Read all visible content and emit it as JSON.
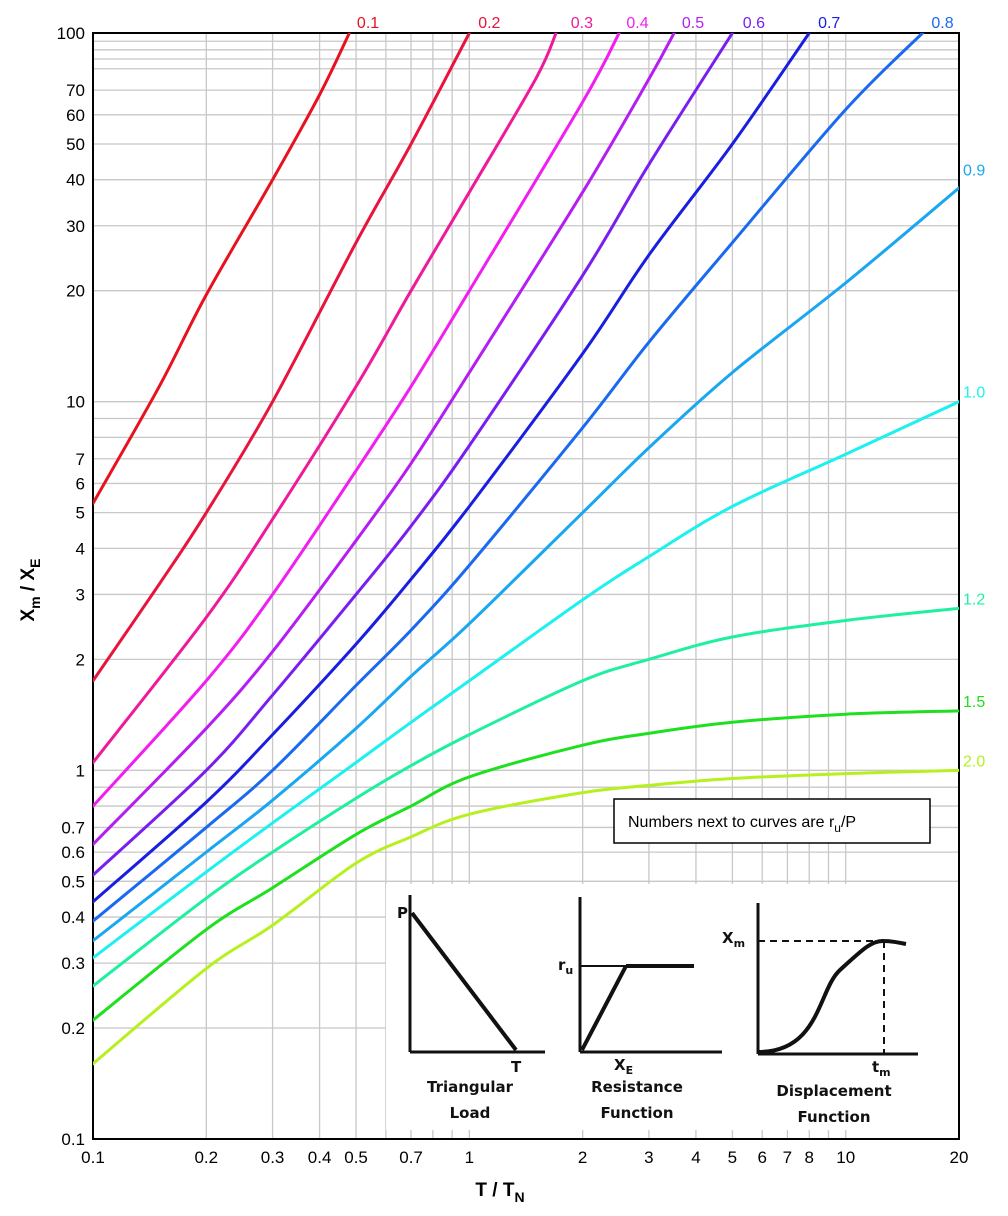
{
  "chart_data": {
    "type": "line",
    "title": "",
    "xlabel_main": "T / T",
    "xlabel_sub": "N",
    "ylabel_main": "X",
    "ylabel_sub1": "m",
    "ylabel_mid": " / X",
    "ylabel_sub2": "E",
    "x_scale": "log",
    "y_scale": "log",
    "xlim": [
      0.1,
      20
    ],
    "ylim": [
      0.1,
      100
    ],
    "grid": true,
    "x_ticks": [
      {
        "value": 0.1,
        "label": "0.1"
      },
      {
        "value": 0.2,
        "label": "0.2"
      },
      {
        "value": 0.3,
        "label": "0.3"
      },
      {
        "value": 0.4,
        "label": "0.4"
      },
      {
        "value": 0.5,
        "label": "0.5"
      },
      {
        "value": 0.7,
        "label": "0.7"
      },
      {
        "value": 1,
        "label": "1"
      },
      {
        "value": 2,
        "label": "2"
      },
      {
        "value": 3,
        "label": "3"
      },
      {
        "value": 4,
        "label": "4"
      },
      {
        "value": 5,
        "label": "5"
      },
      {
        "value": 6,
        "label": "6"
      },
      {
        "value": 7,
        "label": "7"
      },
      {
        "value": 8,
        "label": "8"
      },
      {
        "value": 10,
        "label": "10"
      },
      {
        "value": 20,
        "label": "20"
      }
    ],
    "y_ticks": [
      {
        "value": 0.1,
        "label": "0.1"
      },
      {
        "value": 0.2,
        "label": "0.2"
      },
      {
        "value": 0.3,
        "label": "0.3"
      },
      {
        "value": 0.4,
        "label": "0.4"
      },
      {
        "value": 0.5,
        "label": "0.5"
      },
      {
        "value": 0.6,
        "label": "0.6"
      },
      {
        "value": 0.7,
        "label": "0.7"
      },
      {
        "value": 1,
        "label": "1"
      },
      {
        "value": 2,
        "label": "2"
      },
      {
        "value": 3,
        "label": "3"
      },
      {
        "value": 4,
        "label": "4"
      },
      {
        "value": 5,
        "label": "5"
      },
      {
        "value": 6,
        "label": "6"
      },
      {
        "value": 7,
        "label": "7"
      },
      {
        "value": 10,
        "label": "10"
      },
      {
        "value": 20,
        "label": "20"
      },
      {
        "value": 30,
        "label": "30"
      },
      {
        "value": 40,
        "label": "40"
      },
      {
        "value": 50,
        "label": "50"
      },
      {
        "value": 60,
        "label": "60"
      },
      {
        "value": 70,
        "label": "70"
      },
      {
        "value": 100,
        "label": "100"
      }
    ],
    "series": [
      {
        "name": "0.1",
        "color": "#e8121e",
        "points": [
          [
            0.1,
            5.3
          ],
          [
            0.15,
            11
          ],
          [
            0.2,
            19.5
          ],
          [
            0.3,
            40
          ],
          [
            0.4,
            68
          ],
          [
            0.48,
            100
          ]
        ]
      },
      {
        "name": "0.2",
        "color": "#e8143c",
        "points": [
          [
            0.1,
            1.75
          ],
          [
            0.15,
            3.2
          ],
          [
            0.2,
            5
          ],
          [
            0.3,
            10
          ],
          [
            0.5,
            27
          ],
          [
            0.7,
            50
          ],
          [
            1.0,
            100
          ]
        ]
      },
      {
        "name": "0.3",
        "color": "#ee1a9a",
        "points": [
          [
            0.1,
            1.05
          ],
          [
            0.2,
            2.6
          ],
          [
            0.3,
            4.8
          ],
          [
            0.5,
            11
          ],
          [
            0.7,
            20
          ],
          [
            1.0,
            37
          ],
          [
            1.5,
            75
          ],
          [
            1.7,
            100
          ]
        ]
      },
      {
        "name": "0.4",
        "color": "#f21ef0",
        "points": [
          [
            0.1,
            0.8
          ],
          [
            0.2,
            1.75
          ],
          [
            0.3,
            3.0
          ],
          [
            0.5,
            6.5
          ],
          [
            0.7,
            11
          ],
          [
            1.0,
            20
          ],
          [
            2.0,
            65
          ],
          [
            2.5,
            100
          ]
        ]
      },
      {
        "name": "0.5",
        "color": "#b51ef2",
        "points": [
          [
            0.1,
            0.63
          ],
          [
            0.2,
            1.3
          ],
          [
            0.3,
            2.1
          ],
          [
            0.5,
            4.2
          ],
          [
            0.7,
            6.8
          ],
          [
            1.0,
            12
          ],
          [
            2.0,
            37
          ],
          [
            3.0,
            75
          ],
          [
            3.5,
            100
          ]
        ]
      },
      {
        "name": "0.6",
        "color": "#7a1ef0",
        "points": [
          [
            0.1,
            0.52
          ],
          [
            0.2,
            1.0
          ],
          [
            0.3,
            1.6
          ],
          [
            0.5,
            3.0
          ],
          [
            0.7,
            4.6
          ],
          [
            1.0,
            7.6
          ],
          [
            2.0,
            22
          ],
          [
            3.0,
            44
          ],
          [
            5.0,
            100
          ]
        ]
      },
      {
        "name": "0.7",
        "color": "#1a1ee0",
        "points": [
          [
            0.1,
            0.44
          ],
          [
            0.2,
            0.82
          ],
          [
            0.3,
            1.25
          ],
          [
            0.5,
            2.2
          ],
          [
            0.7,
            3.3
          ],
          [
            1.0,
            5.2
          ],
          [
            2.0,
            13.5
          ],
          [
            3.0,
            25
          ],
          [
            5.0,
            50
          ],
          [
            8.0,
            100
          ]
        ]
      },
      {
        "name": "0.8",
        "color": "#1a6af0",
        "points": [
          [
            0.1,
            0.39
          ],
          [
            0.2,
            0.7
          ],
          [
            0.3,
            1.0
          ],
          [
            0.5,
            1.7
          ],
          [
            0.7,
            2.4
          ],
          [
            1.0,
            3.6
          ],
          [
            2.0,
            8.5
          ],
          [
            3.0,
            14.5
          ],
          [
            5.0,
            27
          ],
          [
            10,
            62
          ],
          [
            16,
            100
          ]
        ]
      },
      {
        "name": "0.9",
        "color": "#1aa6f0",
        "points": [
          [
            0.1,
            0.345
          ],
          [
            0.2,
            0.6
          ],
          [
            0.3,
            0.83
          ],
          [
            0.5,
            1.3
          ],
          [
            0.7,
            1.8
          ],
          [
            1.0,
            2.5
          ],
          [
            2.0,
            5.0
          ],
          [
            3.0,
            7.5
          ],
          [
            5.0,
            12
          ],
          [
            10,
            21
          ],
          [
            20,
            38
          ]
        ]
      },
      {
        "name": "1.0",
        "color": "#1ef0f0",
        "points": [
          [
            0.1,
            0.31
          ],
          [
            0.2,
            0.53
          ],
          [
            0.3,
            0.72
          ],
          [
            0.5,
            1.05
          ],
          [
            0.7,
            1.35
          ],
          [
            1.0,
            1.75
          ],
          [
            2.0,
            2.9
          ],
          [
            3.0,
            3.8
          ],
          [
            5.0,
            5.2
          ],
          [
            10,
            7.2
          ],
          [
            20,
            10
          ]
        ]
      },
      {
        "name": "1.2",
        "color": "#1ef0a0",
        "points": [
          [
            0.1,
            0.26
          ],
          [
            0.2,
            0.45
          ],
          [
            0.3,
            0.6
          ],
          [
            0.5,
            0.84
          ],
          [
            0.7,
            1.03
          ],
          [
            1.0,
            1.25
          ],
          [
            2.0,
            1.75
          ],
          [
            3.0,
            2.0
          ],
          [
            5.0,
            2.3
          ],
          [
            10,
            2.55
          ],
          [
            20,
            2.75
          ]
        ]
      },
      {
        "name": "1.5",
        "color": "#1ee01e",
        "points": [
          [
            0.1,
            0.21
          ],
          [
            0.2,
            0.37
          ],
          [
            0.3,
            0.48
          ],
          [
            0.5,
            0.67
          ],
          [
            0.7,
            0.8
          ],
          [
            1.0,
            0.96
          ],
          [
            2.0,
            1.17
          ],
          [
            3.0,
            1.26
          ],
          [
            5.0,
            1.35
          ],
          [
            10,
            1.42
          ],
          [
            20,
            1.45
          ]
        ]
      },
      {
        "name": "2.0",
        "color": "#b6f01e",
        "points": [
          [
            0.1,
            0.16
          ],
          [
            0.2,
            0.29
          ],
          [
            0.3,
            0.38
          ],
          [
            0.5,
            0.56
          ],
          [
            0.7,
            0.66
          ],
          [
            1.0,
            0.76
          ],
          [
            2.0,
            0.87
          ],
          [
            3.0,
            0.91
          ],
          [
            5.0,
            0.95
          ],
          [
            10,
            0.98
          ],
          [
            20,
            1.0
          ]
        ]
      }
    ],
    "curve_labels_top": [
      {
        "text": "0.1",
        "color": "#e8121e",
        "x": 0.5
      },
      {
        "text": "0.2",
        "color": "#e8143c",
        "x": 1.05
      },
      {
        "text": "0.3",
        "color": "#ee1a9a",
        "x": 1.85
      },
      {
        "text": "0.4",
        "color": "#f21ef0",
        "x": 2.6
      },
      {
        "text": "0.5",
        "color": "#b51ef2",
        "x": 3.65
      },
      {
        "text": "0.6",
        "color": "#7a1ef0",
        "x": 5.3
      },
      {
        "text": "0.7",
        "color": "#1a1ee0",
        "x": 8.4
      },
      {
        "text": "0.8",
        "color": "#1a6af0",
        "x": 16.8
      }
    ],
    "curve_labels_right": [
      {
        "text": "0.9",
        "color": "#1aa6f0",
        "y": 40
      },
      {
        "text": "1.0",
        "color": "#1ef0f0",
        "y": 10
      },
      {
        "text": "1.2",
        "color": "#1ef0a0",
        "y": 2.75
      },
      {
        "text": "1.5",
        "color": "#1ee01e",
        "y": 1.45
      },
      {
        "text": "2.0",
        "color": "#b6f01e",
        "y": 1.0
      }
    ],
    "note_main": "Numbers next to curves are r",
    "note_sub": "u",
    "note_tail": "/P",
    "inset": {
      "panel1": {
        "peak_label": "P",
        "end_label": "T",
        "caption1": "Triangular",
        "caption2": "Load"
      },
      "panel2": {
        "level_label": "r",
        "level_sub": "u",
        "axis_label": "X",
        "axis_sub": "E",
        "caption1": "Resistance",
        "caption2": "Function"
      },
      "panel3": {
        "peak_label": "X",
        "peak_sub": "m",
        "axis_label": "t",
        "axis_sub": "m",
        "caption1": "Displacement",
        "caption2": "Function"
      }
    }
  }
}
